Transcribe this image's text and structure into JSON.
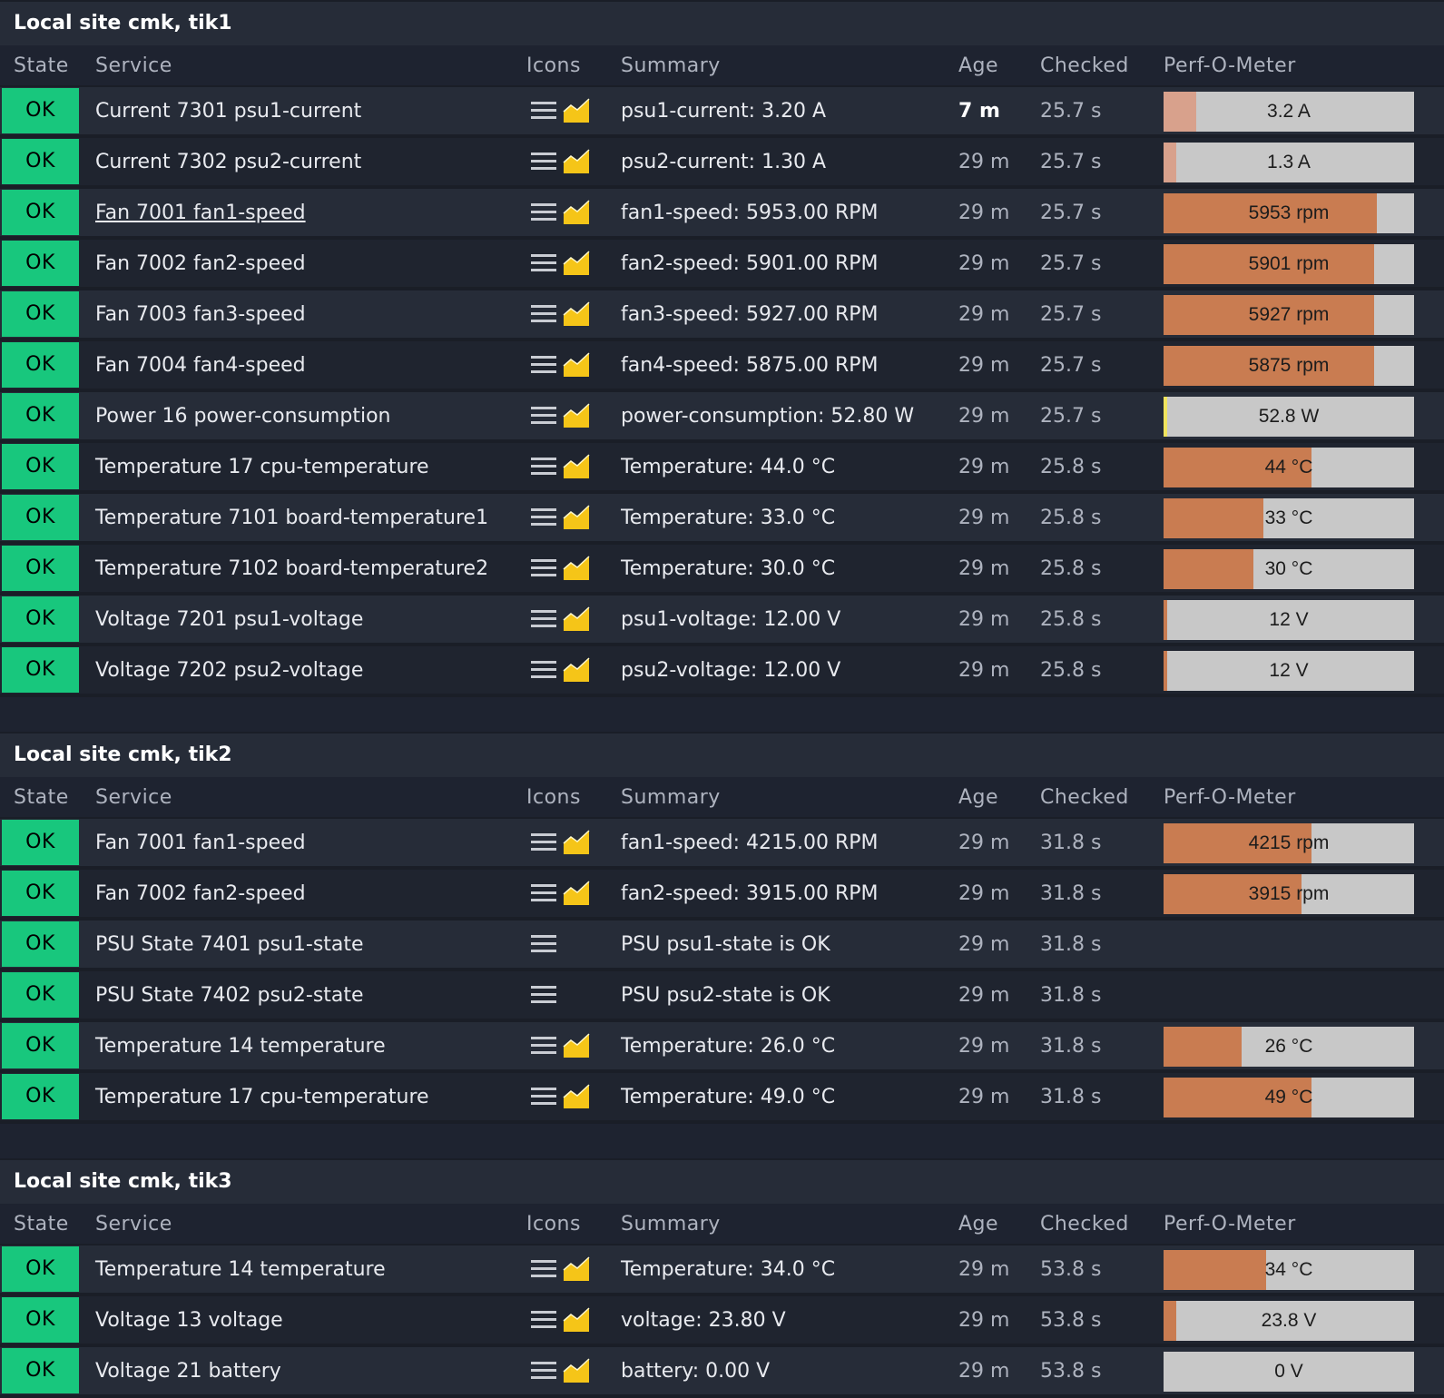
{
  "columns": {
    "state": "State",
    "service": "Service",
    "icons": "Icons",
    "summary": "Summary",
    "age": "Age",
    "checked": "Checked",
    "perf": "Perf-O-Meter"
  },
  "colors": {
    "ok": "#18c77d",
    "perf_orange": "#c97c51",
    "perf_light": "#d8a18c",
    "perf_yellow": "#f0e45e",
    "perf_bg": "#c8c8c8",
    "graph_icon": "#f5c518"
  },
  "sites": [
    {
      "title": "Local site cmk, tik1",
      "rows": [
        {
          "state": "OK",
          "service": "Current 7301 psu1-current",
          "summary": "psu1-current: 3.20 A",
          "age": "7 m",
          "age_recent": true,
          "checked": "25.7 s",
          "graph": true,
          "perf": {
            "label": "3.2 A",
            "fraction": 0.13,
            "color": "#d8a18c"
          }
        },
        {
          "state": "OK",
          "service": "Current 7302 psu2-current",
          "summary": "psu2-current: 1.30 A",
          "age": "29 m",
          "checked": "25.7 s",
          "graph": true,
          "perf": {
            "label": "1.3 A",
            "fraction": 0.05,
            "color": "#d8a18c"
          }
        },
        {
          "state": "OK",
          "service": "Fan 7001 fan1-speed",
          "link": true,
          "summary": "fan1-speed: 5953.00 RPM",
          "age": "29 m",
          "checked": "25.7 s",
          "graph": true,
          "perf": {
            "label": "5953 rpm",
            "fraction": 0.85,
            "color": "#c97c51"
          }
        },
        {
          "state": "OK",
          "service": "Fan 7002 fan2-speed",
          "summary": "fan2-speed: 5901.00 RPM",
          "age": "29 m",
          "checked": "25.7 s",
          "graph": true,
          "perf": {
            "label": "5901 rpm",
            "fraction": 0.84,
            "color": "#c97c51"
          }
        },
        {
          "state": "OK",
          "service": "Fan 7003 fan3-speed",
          "summary": "fan3-speed: 5927.00 RPM",
          "age": "29 m",
          "checked": "25.7 s",
          "graph": true,
          "perf": {
            "label": "5927 rpm",
            "fraction": 0.84,
            "color": "#c97c51"
          }
        },
        {
          "state": "OK",
          "service": "Fan 7004 fan4-speed",
          "summary": "fan4-speed: 5875.00 RPM",
          "age": "29 m",
          "checked": "25.7 s",
          "graph": true,
          "perf": {
            "label": "5875 rpm",
            "fraction": 0.84,
            "color": "#c97c51"
          }
        },
        {
          "state": "OK",
          "service": "Power 16 power-consumption",
          "summary": "power-consumption: 52.80 W",
          "age": "29 m",
          "checked": "25.7 s",
          "graph": true,
          "perf": {
            "label": "52.8 W",
            "fraction": 0.015,
            "color": "#f0e45e"
          }
        },
        {
          "state": "OK",
          "service": "Temperature 17 cpu-temperature",
          "summary": "Temperature: 44.0 °C",
          "age": "29 m",
          "checked": "25.8 s",
          "graph": true,
          "perf": {
            "label": "44 °C",
            "fraction": 0.59,
            "color": "#c97c51"
          }
        },
        {
          "state": "OK",
          "service": "Temperature 7101 board-temperature1",
          "summary": "Temperature: 33.0 °C",
          "age": "29 m",
          "checked": "25.8 s",
          "graph": true,
          "perf": {
            "label": "33 °C",
            "fraction": 0.4,
            "color": "#c97c51"
          }
        },
        {
          "state": "OK",
          "service": "Temperature 7102 board-temperature2",
          "summary": "Temperature: 30.0 °C",
          "age": "29 m",
          "checked": "25.8 s",
          "graph": true,
          "perf": {
            "label": "30 °C",
            "fraction": 0.36,
            "color": "#c97c51"
          }
        },
        {
          "state": "OK",
          "service": "Voltage 7201 psu1-voltage",
          "summary": "psu1-voltage: 12.00 V",
          "age": "29 m",
          "checked": "25.8 s",
          "graph": true,
          "perf": {
            "label": "12 V",
            "fraction": 0.015,
            "color": "#c97c51"
          }
        },
        {
          "state": "OK",
          "service": "Voltage 7202 psu2-voltage",
          "summary": "psu2-voltage: 12.00 V",
          "age": "29 m",
          "checked": "25.8 s",
          "graph": true,
          "perf": {
            "label": "12 V",
            "fraction": 0.015,
            "color": "#c97c51"
          }
        }
      ]
    },
    {
      "title": "Local site cmk, tik2",
      "rows": [
        {
          "state": "OK",
          "service": "Fan 7001 fan1-speed",
          "summary": "fan1-speed: 4215.00 RPM",
          "age": "29 m",
          "checked": "31.8 s",
          "graph": true,
          "perf": {
            "label": "4215 rpm",
            "fraction": 0.59,
            "color": "#c97c51"
          }
        },
        {
          "state": "OK",
          "service": "Fan 7002 fan2-speed",
          "summary": "fan2-speed: 3915.00 RPM",
          "age": "29 m",
          "checked": "31.8 s",
          "graph": true,
          "perf": {
            "label": "3915 rpm",
            "fraction": 0.55,
            "color": "#c97c51"
          }
        },
        {
          "state": "OK",
          "service": "PSU State 7401 psu1-state",
          "summary": "PSU psu1-state is OK",
          "age": "29 m",
          "checked": "31.8 s",
          "graph": false,
          "perf": null
        },
        {
          "state": "OK",
          "service": "PSU State 7402 psu2-state",
          "summary": "PSU psu2-state is OK",
          "age": "29 m",
          "checked": "31.8 s",
          "graph": false,
          "perf": null
        },
        {
          "state": "OK",
          "service": "Temperature 14 temperature",
          "summary": "Temperature: 26.0 °C",
          "age": "29 m",
          "checked": "31.8 s",
          "graph": true,
          "perf": {
            "label": "26 °C",
            "fraction": 0.31,
            "color": "#c97c51"
          }
        },
        {
          "state": "OK",
          "service": "Temperature 17 cpu-temperature",
          "summary": "Temperature: 49.0 °C",
          "age": "29 m",
          "checked": "31.8 s",
          "graph": true,
          "perf": {
            "label": "49 °C",
            "fraction": 0.59,
            "color": "#c97c51"
          }
        }
      ]
    },
    {
      "title": "Local site cmk, tik3",
      "rows": [
        {
          "state": "OK",
          "service": "Temperature 14 temperature",
          "summary": "Temperature: 34.0 °C",
          "age": "29 m",
          "checked": "53.8 s",
          "graph": true,
          "perf": {
            "label": "34 °C",
            "fraction": 0.41,
            "color": "#c97c51"
          }
        },
        {
          "state": "OK",
          "service": "Voltage 13 voltage",
          "summary": "voltage: 23.80 V",
          "age": "29 m",
          "checked": "53.8 s",
          "graph": true,
          "perf": {
            "label": "23.8 V",
            "fraction": 0.05,
            "color": "#c97c51"
          }
        },
        {
          "state": "OK",
          "service": "Voltage 21 battery",
          "summary": "battery: 0.00 V",
          "age": "29 m",
          "checked": "53.8 s",
          "graph": true,
          "perf": {
            "label": "0 V",
            "fraction": 0.0,
            "color": "#c97c51"
          }
        }
      ]
    }
  ]
}
